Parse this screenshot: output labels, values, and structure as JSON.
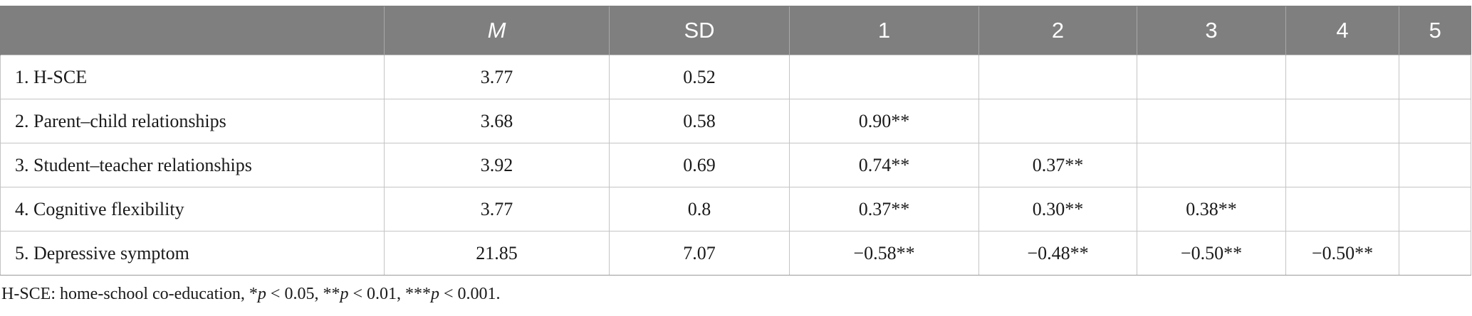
{
  "table": {
    "headers": [
      "",
      "M",
      "SD",
      "1",
      "2",
      "3",
      "4",
      "5"
    ],
    "rows": [
      {
        "label": "1. H-SCE",
        "cells": [
          "3.77",
          "0.52",
          "",
          "",
          "",
          "",
          ""
        ]
      },
      {
        "label": "2. Parent–child relationships",
        "cells": [
          "3.68",
          "0.58",
          "0.90**",
          "",
          "",
          "",
          ""
        ]
      },
      {
        "label": "3. Student–teacher relationships",
        "cells": [
          "3.92",
          "0.69",
          "0.74**",
          "0.37**",
          "",
          "",
          ""
        ]
      },
      {
        "label": "4. Cognitive flexibility",
        "cells": [
          "3.77",
          "0.8",
          "0.37**",
          "0.30**",
          "0.38**",
          "",
          ""
        ]
      },
      {
        "label": "5. Depressive symptom",
        "cells": [
          "21.85",
          "7.07",
          "−0.58**",
          "−0.48**",
          "−0.50**",
          "−0.50**",
          ""
        ]
      }
    ]
  },
  "footnote": {
    "prefix": "H-SCE: home-school co-education, *",
    "p": "p",
    "t1": " < 0.05, **",
    "t2": " < 0.01, ***",
    "t3": " < 0.001."
  }
}
